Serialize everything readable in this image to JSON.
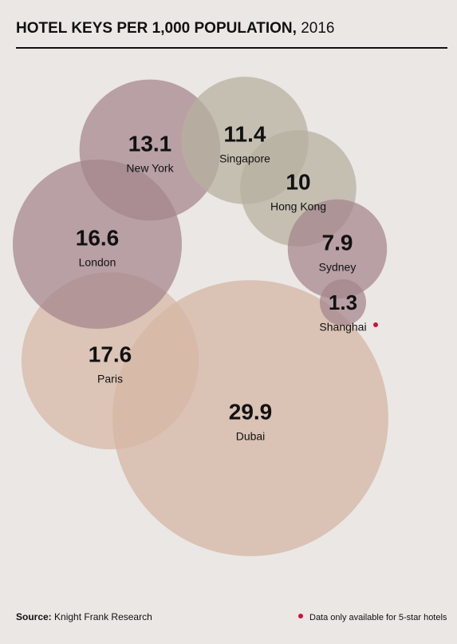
{
  "chart_data": {
    "type": "bubble",
    "title": "HOTEL KEYS PER 1,000 POPULATION,",
    "subtitle": "2016",
    "categories": [
      "Dubai",
      "Paris",
      "London",
      "New York",
      "Singapore",
      "Hong Kong",
      "Sydney",
      "Shanghai"
    ],
    "values": [
      29.9,
      17.6,
      16.6,
      13.1,
      11.4,
      10,
      7.9,
      1.3
    ],
    "colors": [
      "#d2b4a2",
      "#d6b7a4",
      "#a4858c",
      "#a4858c",
      "#b5b09e",
      "#b5b09e",
      "#a4858c",
      "#a4858c"
    ],
    "source_label": "Source:",
    "source": "Knight Frank Research",
    "footnote": "Data only available for 5-star hotels",
    "footnote_marker_color": "#d0103a"
  }
}
